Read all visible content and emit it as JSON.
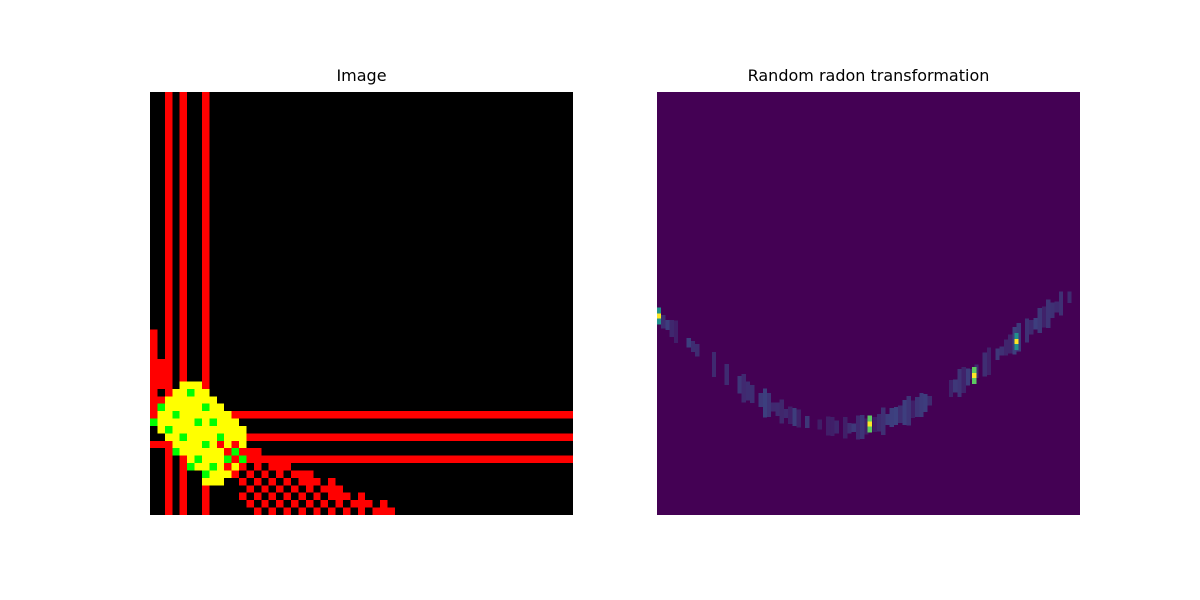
{
  "chart_data": [
    {
      "type": "heatmap",
      "title": "Image",
      "grid": false,
      "axes_visible": false,
      "colors": {
        "background": "#000000",
        "red": "#ff0000",
        "yellow": "#ffff00",
        "green": "#00ff00"
      },
      "content": {
        "vertical_red_lines_x": [
          2.5,
          5.0,
          7.6
        ],
        "horizontal_red_lines_y": [
          43.5,
          47.0,
          49.5
        ],
        "yellow_blob_center": [
          5.0,
          46.0
        ],
        "diagonal_checkerboard": "red checkerboard band running down-right from about (9,49) to (33,57)"
      }
    },
    {
      "type": "heatmap",
      "title": "Random radon transformation",
      "grid": false,
      "axes_visible": false,
      "colormap": "viridis",
      "colors": {
        "background": "#440154",
        "mid": "#3b528b",
        "teal": "#21918c",
        "green": "#5ec962",
        "yellow": "#fde725"
      },
      "columns": 100,
      "rows": 100,
      "curve": {
        "description": "U-shaped sinogram trace of faint vertical streaks",
        "points": [
          [
            0,
            53.5
          ],
          [
            5,
            57.5
          ],
          [
            10,
            62
          ],
          [
            15,
            66
          ],
          [
            20,
            70
          ],
          [
            25,
            73.5
          ],
          [
            30,
            76
          ],
          [
            35,
            78
          ],
          [
            40,
            79
          ],
          [
            45,
            79.5
          ],
          [
            50,
            79
          ],
          [
            55,
            77
          ],
          [
            60,
            75
          ],
          [
            65,
            72.5
          ],
          [
            70,
            69.5
          ],
          [
            75,
            66
          ],
          [
            80,
            62
          ],
          [
            85,
            58
          ],
          [
            90,
            54
          ],
          [
            95,
            50
          ],
          [
            97,
            48.5
          ]
        ]
      },
      "bright_streaks": [
        {
          "x": 0.5,
          "y": 53,
          "level": "teal"
        },
        {
          "x": 50.3,
          "y": 78.5,
          "level": "green"
        },
        {
          "x": 75,
          "y": 67,
          "level": "green"
        },
        {
          "x": 85,
          "y": 59,
          "level": "teal"
        }
      ]
    }
  ]
}
